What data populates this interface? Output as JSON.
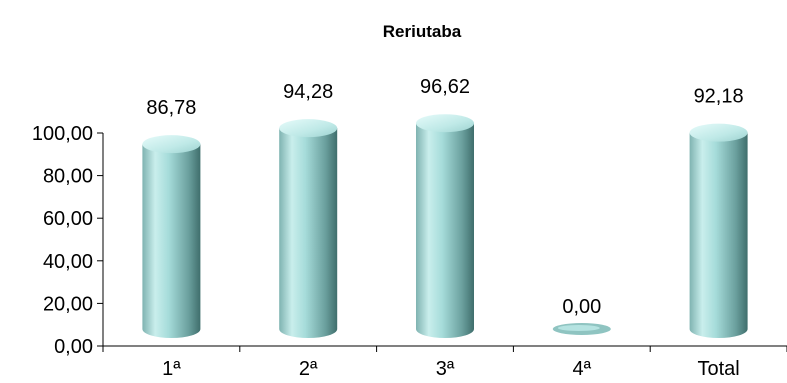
{
  "chart_data": {
    "type": "bar",
    "title": "Reriutaba",
    "categories": [
      "1ª",
      "2ª",
      "3ª",
      "4ª",
      "Total"
    ],
    "values": [
      86.78,
      94.28,
      96.62,
      0.0,
      92.18
    ],
    "value_labels": [
      "86,78",
      "94,28",
      "96,62",
      "0,00",
      "92,18"
    ],
    "y_ticks": [
      0,
      20,
      40,
      60,
      80,
      100
    ],
    "y_tick_labels": [
      "0,00",
      "20,00",
      "40,00",
      "60,00",
      "80,00",
      "100,00"
    ],
    "ylim": [
      0,
      100
    ],
    "xlabel": "",
    "ylabel": "",
    "grid": false,
    "legend": "none",
    "bar_color": "#9fd3d0",
    "bar_shape": "3d-cylinder"
  }
}
